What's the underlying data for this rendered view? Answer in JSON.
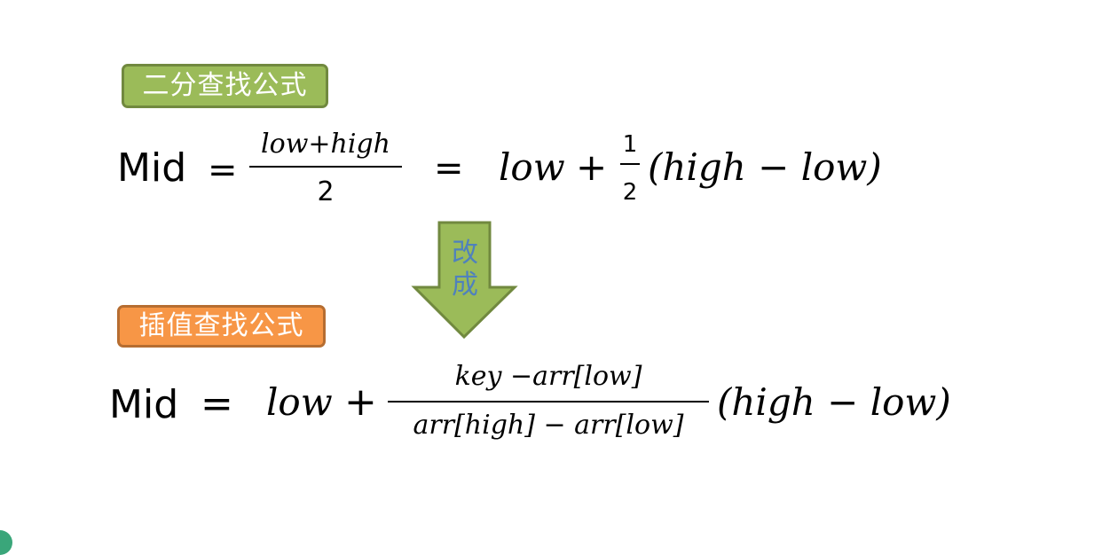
{
  "labels": {
    "binary_search_formula": "二分查找公式",
    "interpolation_search_formula": "插值查找公式",
    "arrow_text": [
      "改",
      "成"
    ]
  },
  "formula1": {
    "lhs": "Mid",
    "eq1": "=",
    "frac_numerator": "low+high",
    "frac_denominator": "2",
    "eq2": "=",
    "term_low": "low",
    "plus": "+",
    "half_num": "1",
    "half_den": "2",
    "paren_expr": "(high − low)"
  },
  "formula2": {
    "lhs": "Mid",
    "eq": "=",
    "term_low": "low",
    "plus": "+",
    "frac_numerator": "key −arr[low]",
    "frac_denominator": "arr[high] − arr[low]",
    "paren_expr": "(high − low)"
  },
  "colors": {
    "green_fill": "#9bbb59",
    "green_border": "#71893f",
    "orange_fill": "#f79646",
    "orange_border": "#b66d31",
    "arrow_fill": "#9bbb59",
    "arrow_text": "#4f81bd"
  }
}
